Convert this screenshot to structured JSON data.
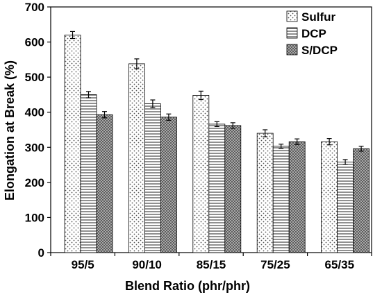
{
  "chart_data": {
    "type": "bar",
    "title": "",
    "xlabel": "Blend Ratio (phr/phr)",
    "ylabel": "Elongation at Break (%)",
    "ylim": [
      0,
      700
    ],
    "yticks": [
      0,
      100,
      200,
      300,
      400,
      500,
      600,
      700
    ],
    "categories": [
      "95/5",
      "90/10",
      "85/15",
      "75/25",
      "65/35"
    ],
    "series": [
      {
        "name": "Sulfur",
        "values": [
          620,
          538,
          448,
          340,
          316
        ],
        "errors": [
          10,
          14,
          12,
          10,
          9
        ],
        "pattern": "dots"
      },
      {
        "name": "DCP",
        "values": [
          450,
          424,
          366,
          303,
          258
        ],
        "errors": [
          9,
          11,
          7,
          6,
          7
        ],
        "pattern": "horizontal-lines"
      },
      {
        "name": "S/DCP",
        "values": [
          393,
          386,
          362,
          316,
          296
        ],
        "errors": [
          9,
          9,
          8,
          8,
          7
        ],
        "pattern": "crosshatch"
      }
    ],
    "legend_position": "top-right",
    "grid": false
  }
}
